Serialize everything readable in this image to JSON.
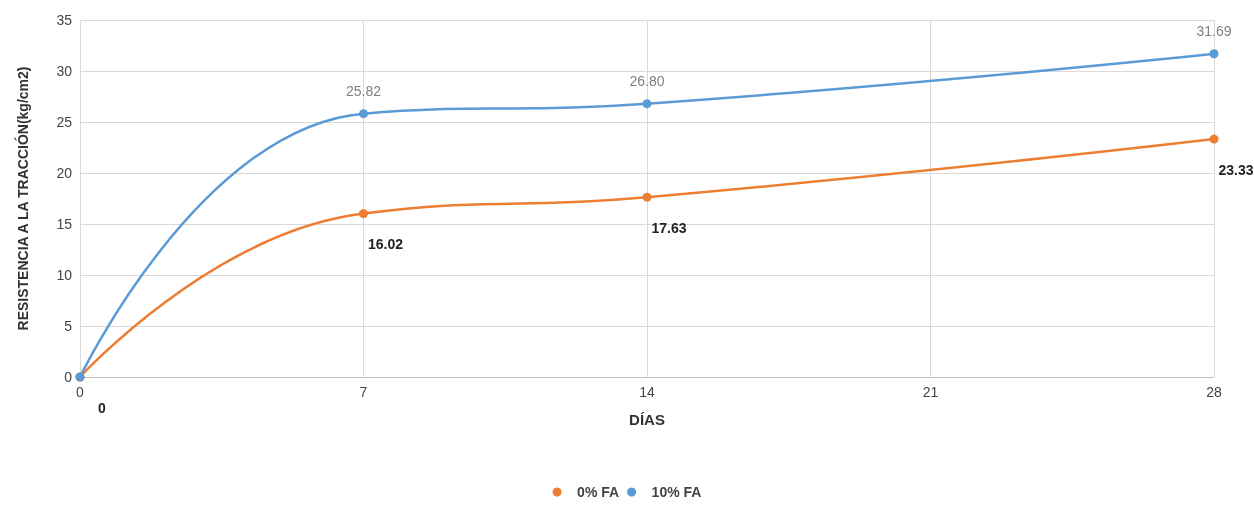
{
  "chart_data": {
    "type": "line",
    "xlabel": "DÍAS",
    "ylabel": "RESISTENCIA A LA TRACCIÓN(kg/cm2)",
    "x": [
      0,
      7,
      14,
      28
    ],
    "series": [
      {
        "name": "0% FA",
        "color": "#ed7d31",
        "values": [
          0,
          16.02,
          17.63,
          23.33
        ],
        "value_labels": [
          "0",
          "16.02",
          "17.63",
          "23.33"
        ]
      },
      {
        "name": "10% FA",
        "color": "#5b9bd5",
        "values": [
          0,
          25.82,
          26.8,
          31.69
        ],
        "value_labels": [
          null,
          "25.82",
          "26.80",
          "31.69"
        ]
      }
    ],
    "xlim": [
      0,
      28
    ],
    "xticks": [
      0,
      7,
      14,
      21,
      28
    ],
    "ylim": [
      0,
      35
    ],
    "yticks": [
      0,
      5,
      10,
      15,
      20,
      25,
      30,
      35
    ],
    "grid": true,
    "legend": "bottom",
    "marker": "circle",
    "line_style": "solid"
  }
}
